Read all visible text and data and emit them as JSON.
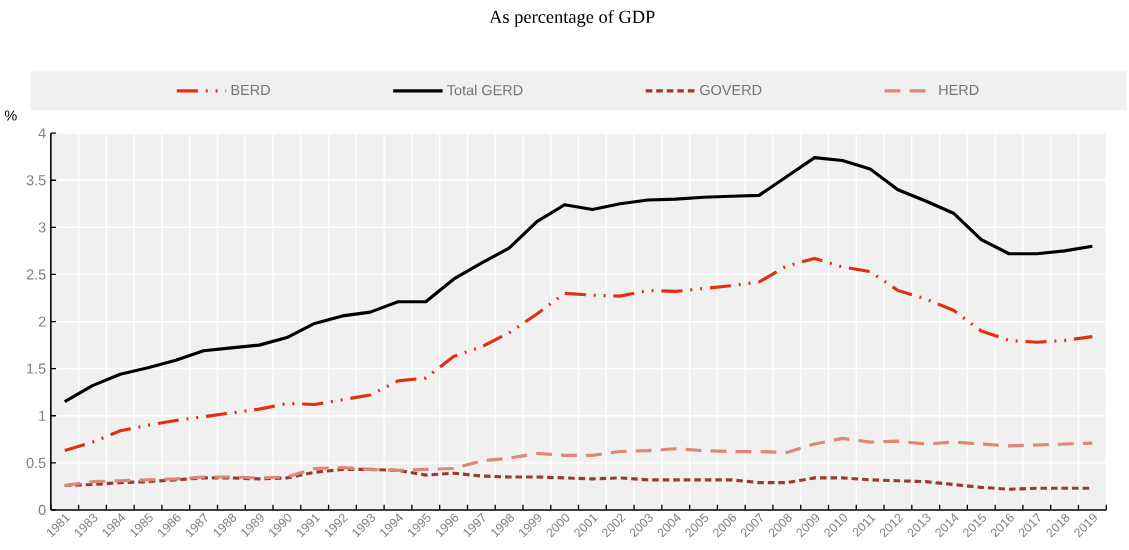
{
  "chart_data": {
    "type": "line",
    "title": "As percentage of GDP",
    "ylabel": "%",
    "categories": [
      "1981",
      "1983",
      "1984",
      "1985",
      "1986",
      "1987",
      "1988",
      "1989",
      "1990",
      "1991",
      "1992",
      "1993",
      "1994",
      "1995",
      "1996",
      "1997",
      "1998",
      "1999",
      "2000",
      "2001",
      "2002",
      "2003",
      "2004",
      "2005",
      "2006",
      "2007",
      "2008",
      "2009",
      "2010",
      "2011",
      "2012",
      "2013",
      "2014",
      "2015",
      "2016",
      "2017",
      "2018",
      "2019"
    ],
    "series": [
      {
        "name": "BERD",
        "color": "#e03010",
        "line_style": "dashdotdotted",
        "values": [
          0.63,
          0.72,
          0.84,
          0.9,
          0.95,
          0.99,
          1.03,
          1.07,
          1.13,
          1.12,
          1.17,
          1.22,
          1.37,
          1.4,
          1.63,
          1.73,
          1.88,
          2.08,
          2.3,
          2.28,
          2.27,
          2.33,
          2.32,
          2.35,
          2.38,
          2.42,
          2.59,
          2.67,
          2.58,
          2.53,
          2.33,
          2.24,
          2.12,
          1.9,
          1.8,
          1.78,
          1.8,
          1.84
        ]
      },
      {
        "name": "Total GERD",
        "color": "#000000",
        "line_style": "solid",
        "values": [
          1.15,
          1.32,
          1.44,
          1.51,
          1.59,
          1.69,
          1.72,
          1.75,
          1.83,
          1.98,
          2.06,
          2.1,
          2.21,
          2.21,
          2.45,
          2.62,
          2.78,
          3.06,
          3.24,
          3.19,
          3.25,
          3.29,
          3.3,
          3.32,
          3.33,
          3.34,
          3.54,
          3.74,
          3.71,
          3.62,
          3.4,
          3.28,
          3.15,
          2.87,
          2.72,
          2.72,
          2.75,
          2.8
        ]
      },
      {
        "name": "GOVERD",
        "color": "#9b3a2e",
        "line_style": "dashed",
        "values": [
          0.26,
          0.27,
          0.29,
          0.3,
          0.32,
          0.34,
          0.34,
          0.33,
          0.34,
          0.4,
          0.43,
          0.43,
          0.42,
          0.37,
          0.39,
          0.36,
          0.35,
          0.35,
          0.34,
          0.33,
          0.34,
          0.32,
          0.32,
          0.32,
          0.32,
          0.29,
          0.29,
          0.34,
          0.34,
          0.32,
          0.31,
          0.3,
          0.27,
          0.24,
          0.22,
          0.23,
          0.23,
          0.23
        ]
      },
      {
        "name": "HERD",
        "color": "#dd8877",
        "line_style": "loosely dashed",
        "values": [
          0.26,
          0.3,
          0.31,
          0.32,
          0.33,
          0.35,
          0.35,
          0.34,
          0.35,
          0.44,
          0.45,
          0.43,
          0.42,
          0.43,
          0.44,
          0.52,
          0.55,
          0.6,
          0.58,
          0.58,
          0.62,
          0.63,
          0.65,
          0.63,
          0.62,
          0.62,
          0.61,
          0.7,
          0.76,
          0.72,
          0.73,
          0.7,
          0.72,
          0.7,
          0.68,
          0.69,
          0.7,
          0.71
        ]
      }
    ],
    "ylim": [
      0,
      4
    ],
    "yticks": [
      0,
      0.5,
      1,
      1.5,
      2,
      2.5,
      3,
      3.5,
      4
    ],
    "grid": true,
    "legend": "top"
  }
}
